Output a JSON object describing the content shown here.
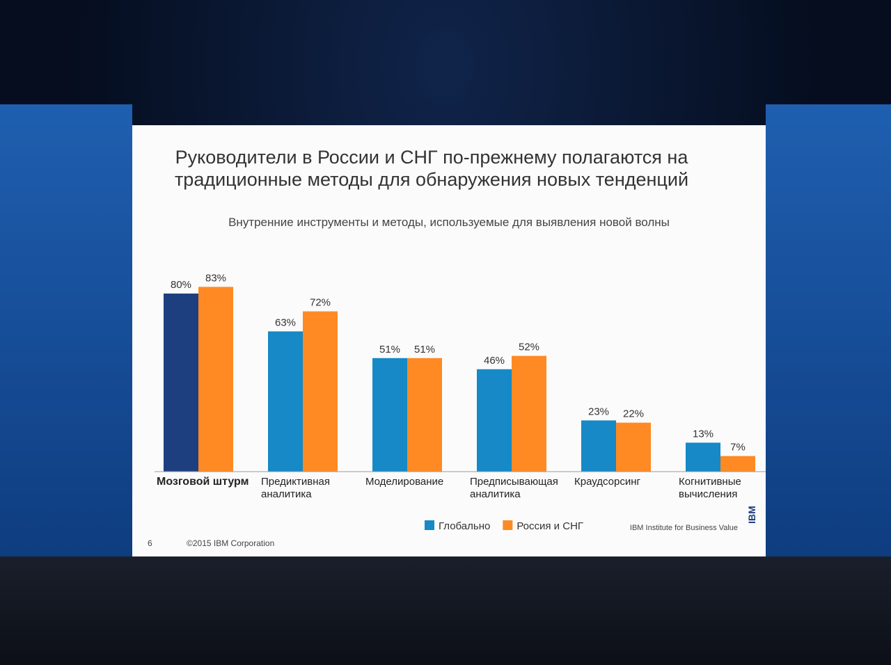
{
  "chart_data": {
    "type": "bar",
    "title": "Руководители в России и СНГ по-прежнему полагаются на традиционные методы для обнаружения новых тенденций",
    "subtitle": "Внутренние инструменты и методы, используемые для выявления новой волны",
    "categories": [
      "Мозговой штурм",
      "Предиктивная\nаналитика",
      "Моделирование",
      "Предписывающая\nаналитика",
      "Краудсорсинг",
      "Когнитивные\nвычисления"
    ],
    "series": [
      {
        "name": "Глобально",
        "color": "#1689c6",
        "colors": [
          "#1e3f7f",
          "#1689c6",
          "#1689c6",
          "#1689c6",
          "#1689c6",
          "#1689c6"
        ],
        "values": [
          80,
          63,
          51,
          46,
          23,
          13
        ],
        "value_labels": [
          "80%",
          "63%",
          "51%",
          "46%",
          "23%",
          "13%"
        ]
      },
      {
        "name": "Россия и СНГ",
        "color": "#ff8a24",
        "values": [
          83,
          72,
          51,
          52,
          22,
          7
        ],
        "value_labels": [
          "83%",
          "72%",
          "51%",
          "52%",
          "22%",
          "7%"
        ]
      }
    ],
    "legend": "bottom-right"
  },
  "footer": {
    "page": "6",
    "copyright": "©2015 IBM Corporation",
    "source": "IBM Institute for Business Value",
    "logo": "IBM"
  }
}
